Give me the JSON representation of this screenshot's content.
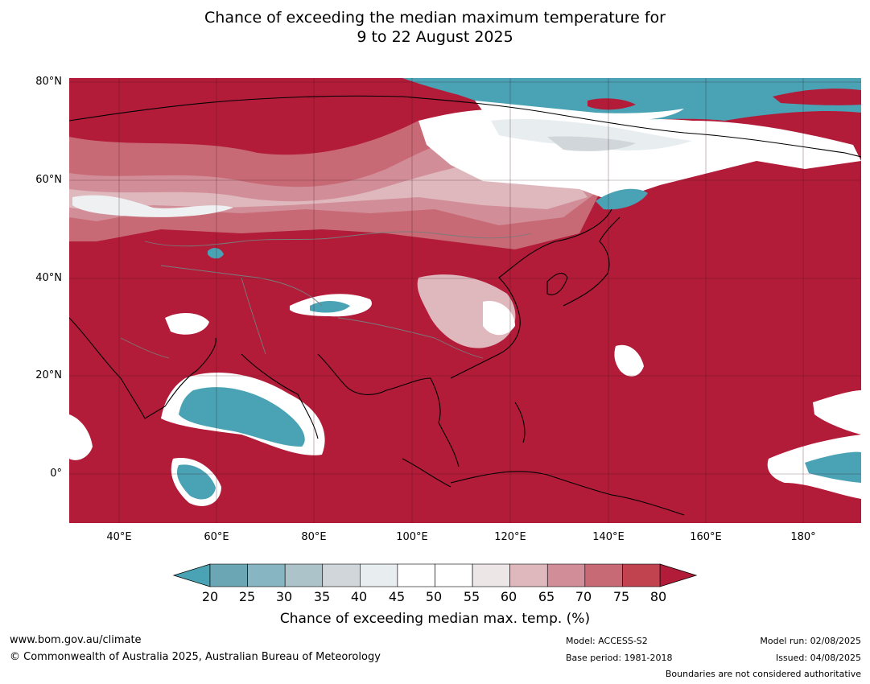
{
  "title": {
    "line1": "Chance of exceeding the median maximum temperature for",
    "line2": "9 to 22 August 2025"
  },
  "map": {
    "lat_labels": [
      "80°N",
      "60°N",
      "40°N",
      "20°N",
      "0°"
    ],
    "lon_labels": [
      "40°E",
      "60°E",
      "80°E",
      "100°E",
      "120°E",
      "140°E",
      "160°E",
      "180°"
    ],
    "extent": {
      "lon_min": 30,
      "lon_max": 191,
      "lat_min": -10,
      "lat_max": 81
    }
  },
  "colorbar": {
    "ticks": [
      "20",
      "25",
      "30",
      "35",
      "40",
      "45",
      "50",
      "55",
      "60",
      "65",
      "70",
      "75",
      "80"
    ],
    "colors": [
      "#6aa6b4",
      "#88b5c2",
      "#adc3ca",
      "#d0d6d9",
      "#e8eeef",
      "#ffffff",
      "#ffffff",
      "#ece6e7",
      "#dfb8be",
      "#d28e98",
      "#c86a76",
      "#c0434f"
    ],
    "under_color": "#4aa3b5",
    "over_color": "#b21c39",
    "label": "Chance of exceeding median max. temp. (%)"
  },
  "footer": {
    "website": "www.bom.gov.au/climate",
    "copyright": "© Commonwealth of Australia 2025, Australian Bureau of Meteorology",
    "model": "Model: ACCESS-S2",
    "base_period": "Base period: 1981-2018",
    "model_run": "Model run: 02/08/2025",
    "issued": "Issued: 04/08/2025",
    "disclaimer": "Boundaries are not considered authoritative"
  }
}
